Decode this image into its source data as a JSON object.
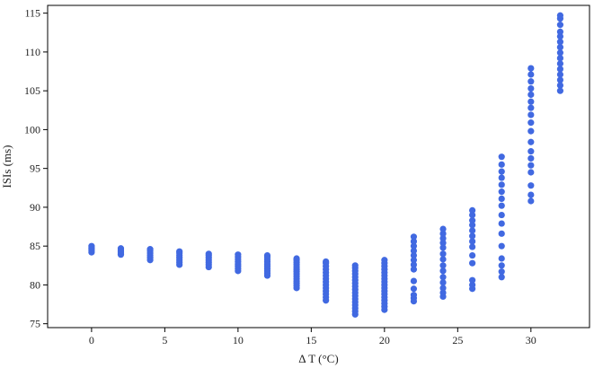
{
  "chart_data": {
    "type": "scatter",
    "title": "",
    "xlabel": "Δ T (°C)",
    "ylabel": "ISIs (ms)",
    "xlim": [
      -3,
      34
    ],
    "ylim": [
      74.5,
      116
    ],
    "xticks": [
      0,
      5,
      10,
      15,
      20,
      25,
      30
    ],
    "yticks": [
      75,
      80,
      85,
      90,
      95,
      100,
      105,
      110,
      115
    ],
    "grid": false,
    "legend": "none",
    "marker_color": "#4169e1",
    "points_by_x": [
      {
        "x": 0,
        "y": [
          84.2,
          84.4,
          84.6,
          84.8,
          85.0
        ]
      },
      {
        "x": 2,
        "y": [
          83.9,
          84.1,
          84.3,
          84.5,
          84.7
        ]
      },
      {
        "x": 4,
        "y": [
          83.2,
          83.5,
          83.8,
          84.1,
          84.4,
          84.6
        ]
      },
      {
        "x": 6,
        "y": [
          82.6,
          82.9,
          83.2,
          83.5,
          83.8,
          84.1,
          84.3
        ]
      },
      {
        "x": 8,
        "y": [
          82.3,
          82.6,
          82.9,
          83.2,
          83.5,
          83.8,
          84.0
        ]
      },
      {
        "x": 10,
        "y": [
          81.8,
          82.1,
          82.4,
          82.7,
          83.0,
          83.3,
          83.6,
          83.9
        ]
      },
      {
        "x": 12,
        "y": [
          81.2,
          81.5,
          81.8,
          82.1,
          82.4,
          82.7,
          83.0,
          83.3,
          83.6,
          83.8
        ]
      },
      {
        "x": 14,
        "y": [
          79.6,
          79.9,
          80.2,
          80.5,
          80.8,
          81.1,
          81.4,
          81.7,
          82.0,
          82.3,
          82.6,
          82.9,
          83.2,
          83.4
        ]
      },
      {
        "x": 16,
        "y": [
          78.0,
          78.4,
          78.8,
          79.2,
          79.6,
          80.0,
          80.4,
          80.8,
          81.2,
          81.6,
          82.0,
          82.4,
          82.8,
          83.0
        ]
      },
      {
        "x": 18,
        "y": [
          76.2,
          76.6,
          77.0,
          77.4,
          77.8,
          78.2,
          78.6,
          79.0,
          79.4,
          79.8,
          80.2,
          80.6,
          81.0,
          81.4,
          81.8,
          82.2,
          82.5
        ]
      },
      {
        "x": 20,
        "y": [
          76.8,
          77.2,
          77.6,
          78.0,
          78.4,
          78.8,
          79.2,
          79.6,
          80.0,
          80.4,
          80.8,
          81.2,
          81.6,
          82.0,
          82.4,
          82.8,
          83.2
        ]
      },
      {
        "x": 22,
        "y": [
          77.9,
          78.3,
          78.7,
          79.5,
          80.5,
          82.0,
          82.6,
          83.2,
          83.8,
          84.4,
          85.0,
          85.6,
          86.2
        ]
      },
      {
        "x": 24,
        "y": [
          78.5,
          79.0,
          79.6,
          80.3,
          81.0,
          81.8,
          82.5,
          83.3,
          84.0,
          84.8,
          85.4,
          86.0,
          86.6,
          87.2
        ]
      },
      {
        "x": 26,
        "y": [
          79.5,
          80.0,
          80.6,
          82.8,
          83.8,
          84.9,
          85.6,
          86.3,
          87.0,
          87.7,
          88.3,
          89.0,
          89.6
        ]
      },
      {
        "x": 28,
        "y": [
          81.0,
          81.7,
          82.5,
          83.4,
          85.0,
          86.6,
          87.9,
          89.0,
          90.2,
          91.1,
          92.0,
          92.9,
          93.8,
          94.6,
          95.5,
          96.5
        ]
      },
      {
        "x": 30,
        "y": [
          90.8,
          91.6,
          92.8,
          94.5,
          95.4,
          96.3,
          97.2,
          98.4,
          99.8,
          100.9,
          101.9,
          102.8,
          103.6,
          104.5,
          105.3,
          106.2,
          107.1,
          107.9
        ]
      },
      {
        "x": 32,
        "y": [
          105.0,
          105.7,
          106.4,
          107.1,
          107.8,
          108.5,
          109.2,
          109.9,
          110.6,
          111.3,
          112.0,
          112.6,
          113.5,
          114.3,
          114.7
        ]
      }
    ]
  }
}
